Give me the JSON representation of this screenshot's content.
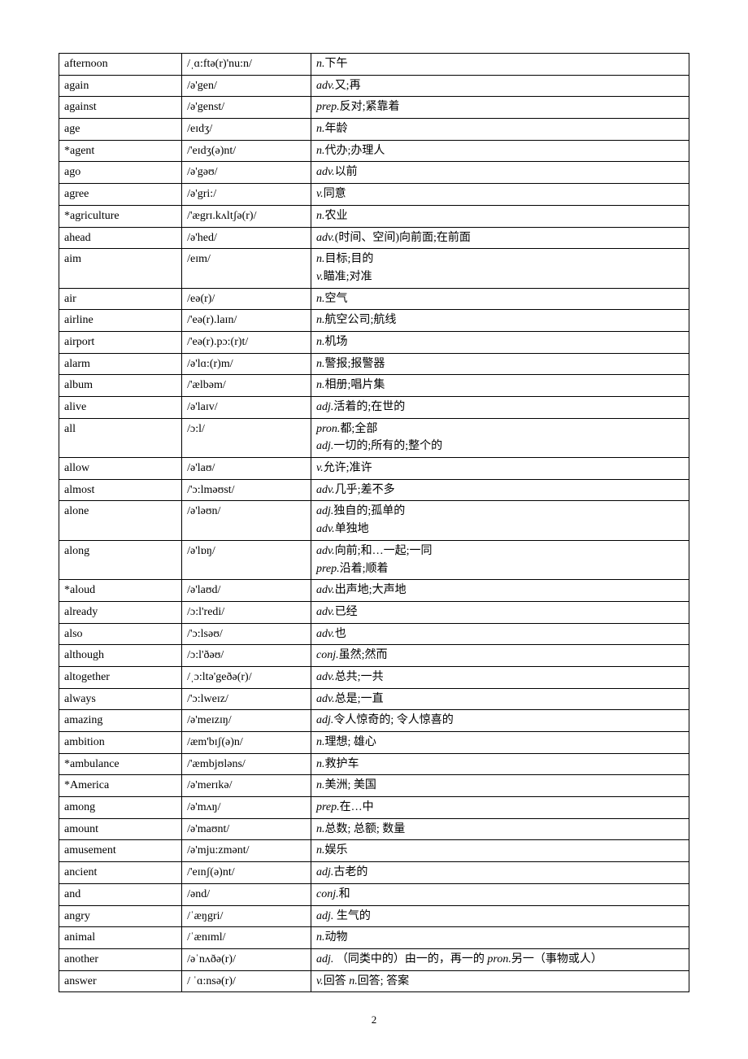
{
  "page_number": "2",
  "columns": {
    "widths_pct": [
      19.5,
      20.5,
      60
    ]
  },
  "style": {
    "font_family": "SimSun",
    "font_size_pt": 10.5,
    "border_color": "#000000",
    "background": "#ffffff",
    "italic_pos": true
  },
  "rows": [
    {
      "word": "afternoon",
      "ipa": "/ˌɑ:ftə(r)'nu:n/",
      "defs": [
        [
          "n.",
          "下午"
        ]
      ]
    },
    {
      "word": "again",
      "ipa": "/ə'gen/",
      "defs": [
        [
          "adv.",
          "又;再"
        ]
      ]
    },
    {
      "word": "against",
      "ipa": "/ə'genst/",
      "defs": [
        [
          "prep.",
          "反对;紧靠着"
        ]
      ]
    },
    {
      "word": "age",
      "ipa": "/eɪdʒ/",
      "defs": [
        [
          "n.",
          "年龄"
        ]
      ]
    },
    {
      "word": "*agent",
      "ipa": "/'eɪdʒ(ə)nt/",
      "defs": [
        [
          "n.",
          "代办;办理人"
        ]
      ]
    },
    {
      "word": "ago",
      "ipa": "/ə'gəʊ/",
      "defs": [
        [
          "adv.",
          "以前"
        ]
      ]
    },
    {
      "word": "agree",
      "ipa": "/ə'gri:/",
      "defs": [
        [
          "v.",
          "同意"
        ]
      ]
    },
    {
      "word": "*agriculture",
      "ipa": "/'ægrɪ.kʌltʃə(r)/",
      "defs": [
        [
          "n.",
          "农业"
        ]
      ]
    },
    {
      "word": "ahead",
      "ipa": "/ə'hed/",
      "defs": [
        [
          "adv.",
          "(时间、空间)向前面;在前面"
        ]
      ]
    },
    {
      "word": "aim",
      "ipa": "/eɪm/",
      "defs": [
        [
          "n.",
          "目标;目的"
        ],
        [
          "v.",
          "瞄准;对准"
        ]
      ]
    },
    {
      "word": "air",
      "ipa": "/eə(r)/",
      "defs": [
        [
          "n.",
          "空气"
        ]
      ]
    },
    {
      "word": "airline",
      "ipa": "/'eə(r).laɪn/",
      "defs": [
        [
          "n.",
          "航空公司;航线"
        ]
      ]
    },
    {
      "word": "airport",
      "ipa": "/'eə(r).pɔ:(r)t/",
      "defs": [
        [
          "n.",
          "机场"
        ]
      ]
    },
    {
      "word": "alarm",
      "ipa": "/ə'lɑ:(r)m/",
      "defs": [
        [
          "n.",
          "警报;报警器"
        ]
      ]
    },
    {
      "word": "album",
      "ipa": "/'ælbəm/",
      "defs": [
        [
          "n.",
          "相册;唱片集"
        ]
      ]
    },
    {
      "word": "alive",
      "ipa": "/ə'laɪv/",
      "defs": [
        [
          "adj.",
          "活着的;在世的"
        ]
      ]
    },
    {
      "word": "all",
      "ipa": "/ɔ:l/",
      "defs": [
        [
          "pron.",
          "都;全部"
        ],
        [
          "adj.",
          "一切的;所有的;整个的"
        ]
      ]
    },
    {
      "word": "allow",
      "ipa": "/ə'laʊ/",
      "defs": [
        [
          "v.",
          "允许;准许"
        ]
      ]
    },
    {
      "word": "almost",
      "ipa": "/'ɔ:lməʊst/",
      "defs": [
        [
          "adv.",
          "几乎;差不多"
        ]
      ]
    },
    {
      "word": "alone",
      "ipa": "/ə'ləʊn/",
      "defs": [
        [
          "adj.",
          "独自的;孤单的"
        ],
        [
          "adv.",
          "单独地"
        ]
      ]
    },
    {
      "word": "along",
      "ipa": "/ə'lɒŋ/",
      "defs": [
        [
          "adv.",
          "向前;和…一起;一同"
        ],
        [
          "prep.",
          "沿着;顺着"
        ]
      ]
    },
    {
      "word": "*aloud",
      "ipa": "/ə'laʊd/",
      "defs": [
        [
          "adv.",
          "出声地;大声地"
        ]
      ]
    },
    {
      "word": "already",
      "ipa": "/ɔ:l'redi/",
      "defs": [
        [
          "adv.",
          "已经"
        ]
      ]
    },
    {
      "word": "also",
      "ipa": "/'ɔ:lsəʊ/",
      "defs": [
        [
          "adv.",
          "也"
        ]
      ]
    },
    {
      "word": "although",
      "ipa": "/ɔ:l'ðəʊ/",
      "defs": [
        [
          "conj.",
          "虽然;然而"
        ]
      ]
    },
    {
      "word": "altogether",
      "ipa": "/ˌɔ:ltə'geðə(r)/",
      "defs": [
        [
          "adv.",
          "总共;一共"
        ]
      ]
    },
    {
      "word": "always",
      "ipa": "/'ɔ:lweɪz/",
      "defs": [
        [
          "adv.",
          "总是;一直"
        ]
      ]
    },
    {
      "word": "amazing",
      "ipa": "/ə'meɪzɪŋ/",
      "defs": [
        [
          "adj.",
          "令人惊奇的; 令人惊喜的"
        ]
      ]
    },
    {
      "word": "ambition",
      "ipa": "/æm'bɪʃ(ə)n/",
      "defs": [
        [
          "n.",
          "理想; 雄心"
        ]
      ]
    },
    {
      "word": "*ambulance",
      "ipa": "/'æmbjʊləns/",
      "defs": [
        [
          "n.",
          "救护车"
        ]
      ]
    },
    {
      "word": "*America",
      "ipa": "/ə'merɪkə/",
      "defs": [
        [
          "n.",
          "美洲; 美国"
        ]
      ]
    },
    {
      "word": "among",
      "ipa": "/ə'mʌŋ/",
      "defs": [
        [
          "prep.",
          "在…中"
        ]
      ]
    },
    {
      "word": "amount",
      "ipa": "/ə'maʊnt/",
      "defs": [
        [
          "n.",
          "总数; 总额; 数量"
        ]
      ]
    },
    {
      "word": "amusement",
      "ipa": "/ə'mju:zmənt/",
      "defs": [
        [
          "n.",
          "娱乐"
        ]
      ]
    },
    {
      "word": "ancient",
      "ipa": "/'eɪnʃ(ə)nt/",
      "defs": [
        [
          "adj.",
          "古老的"
        ]
      ]
    },
    {
      "word": "and",
      "ipa": "/ənd/",
      "defs": [
        [
          "conj.",
          "和"
        ]
      ]
    },
    {
      "word": "angry",
      "ipa": "/ˈæŋgri/",
      "defs": [
        [
          "adj.",
          "  生气的"
        ]
      ]
    },
    {
      "word": "animal",
      "ipa": "/ˈænɪml/",
      "defs": [
        [
          "n.",
          "动物"
        ]
      ]
    },
    {
      "word": "another",
      "ipa": "/əˈnʌðə(r)/",
      "defs": [
        [
          "adj.",
          " （同类中的）由一的，再一的 ",
          "pron.",
          "另一（事物或人）"
        ]
      ]
    },
    {
      "word": "answer",
      "ipa": "/  ˈɑ:nsə(r)/",
      "defs": [
        [
          "v.",
          "回答",
          "n.",
          "回答; 答案"
        ]
      ]
    }
  ]
}
